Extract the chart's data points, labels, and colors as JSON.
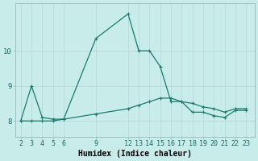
{
  "line1_x": [
    2,
    3,
    4,
    5,
    6,
    9,
    12,
    13,
    14,
    15,
    16,
    17,
    18,
    19,
    20,
    21,
    22,
    23
  ],
  "line1_y": [
    8.0,
    9.0,
    8.1,
    8.05,
    8.05,
    10.35,
    11.05,
    10.0,
    10.0,
    9.55,
    8.55,
    8.55,
    8.25,
    8.25,
    8.15,
    8.1,
    8.3,
    8.3
  ],
  "line2_x": [
    2,
    3,
    4,
    5,
    6,
    9,
    12,
    13,
    14,
    15,
    16,
    17,
    18,
    19,
    20,
    21,
    22,
    23
  ],
  "line2_y": [
    8.0,
    8.0,
    8.0,
    8.0,
    8.05,
    8.2,
    8.35,
    8.45,
    8.55,
    8.65,
    8.65,
    8.55,
    8.5,
    8.4,
    8.35,
    8.25,
    8.35,
    8.35
  ],
  "line_color": "#1a7a6e",
  "bg_color": "#c8ecea",
  "grid_color_major": "#b8d8d5",
  "grid_color_minor": "#d0e8e5",
  "xlabel": "Humidex (Indice chaleur)",
  "xticks": [
    2,
    3,
    4,
    5,
    6,
    9,
    12,
    13,
    14,
    15,
    16,
    17,
    18,
    19,
    20,
    21,
    22,
    23
  ],
  "yticks": [
    8,
    9,
    10
  ],
  "ylim": [
    7.55,
    11.35
  ],
  "xlim": [
    1.5,
    23.8
  ],
  "xlabel_fontsize": 7.0,
  "tick_fontsize": 6.0,
  "ylabel_fontsize": 7.0
}
